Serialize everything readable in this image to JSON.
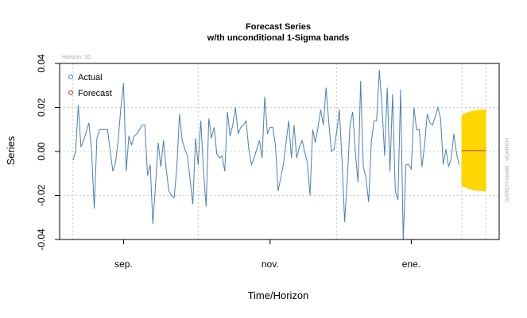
{
  "chart_data": {
    "type": "line",
    "title": "Forecast Series",
    "subtitle": "w/th unconditional 1-Sigma bands",
    "xlabel": "Time/Horizon",
    "ylabel": "Series",
    "ylim": [
      -0.04,
      0.04
    ],
    "y_ticks": [
      "-0.04",
      "-0.02",
      "0.00",
      "0.02",
      "0.04"
    ],
    "x_tick_labels": [
      "sep.",
      "nov.",
      "ene."
    ],
    "grid": true,
    "legend_position": "top-left",
    "horizon_label": "Horizon: 10",
    "side_note": "GARCH model : sGARCH",
    "series": [
      {
        "name": "Actual",
        "color": "#4a7fb5",
        "x": [
          1,
          2,
          3,
          4,
          5,
          6,
          7,
          8,
          9,
          10,
          11,
          12,
          13,
          14,
          15,
          16,
          17,
          18,
          19,
          20,
          21,
          22,
          23,
          24,
          25,
          26,
          27,
          28,
          29,
          30,
          31,
          32,
          33,
          34,
          35,
          36,
          37,
          38,
          39,
          40,
          41,
          42,
          43,
          44,
          45,
          46,
          47,
          48,
          49,
          50,
          51,
          52,
          53,
          54,
          55,
          56,
          57,
          58,
          59,
          60,
          61,
          62,
          63,
          64,
          65,
          66,
          67,
          68,
          69,
          70,
          71,
          72,
          73,
          74,
          75,
          76,
          77,
          78,
          79,
          80,
          81,
          82,
          83,
          84,
          85,
          86,
          87,
          88,
          89,
          90,
          91,
          92,
          93,
          94,
          95,
          96,
          97,
          98,
          99,
          100,
          101,
          102,
          103,
          104,
          105,
          106,
          107,
          108,
          109,
          110,
          111,
          112,
          113,
          114,
          115,
          116,
          117,
          118,
          119,
          120,
          121,
          122,
          123,
          124,
          125,
          126,
          127,
          128,
          129,
          130,
          131,
          132,
          133,
          134,
          135,
          136,
          137,
          138,
          139,
          140,
          141,
          142,
          143,
          144,
          145,
          146
        ],
        "values": [
          -0.004,
          0.0,
          0.021,
          0.002,
          0.005,
          0.009,
          0.013,
          0.0,
          -0.026,
          0.006,
          0.01,
          0.01,
          0.01,
          0.01,
          0.0,
          -0.009,
          -0.005,
          0.005,
          0.02,
          0.031,
          -0.009,
          0.007,
          0.003,
          0.007,
          0.008,
          0.01,
          0.012,
          0.012,
          -0.011,
          -0.006,
          -0.033,
          -0.015,
          0.004,
          -0.007,
          0.005,
          -0.008,
          -0.018,
          -0.02,
          -0.021,
          -0.007,
          0.017,
          0.005,
          0.001,
          -0.002,
          -0.013,
          -0.024,
          0.006,
          -0.006,
          0.014,
          -0.009,
          -0.025,
          0.015,
          0.006,
          0.011,
          -0.001,
          -0.003,
          -0.002,
          -0.009,
          0.018,
          0.007,
          0.012,
          0.02,
          0.008,
          0.011,
          0.012,
          0.014,
          0.001,
          -0.006,
          -0.003,
          0.001,
          0.005,
          -0.003,
          0.025,
          0.008,
          0.011,
          0.011,
          0.003,
          -0.018,
          -0.012,
          -0.006,
          0.004,
          0.014,
          -0.003,
          0.012,
          -0.003,
          0.002,
          0.005,
          0.0,
          -0.005,
          -0.02,
          0.01,
          0.004,
          0.011,
          0.019,
          0.012,
          0.029,
          0.014,
          0.0,
          0.001,
          0.009,
          0.019,
          -0.004,
          -0.032,
          -0.012,
          0.012,
          0.018,
          0.0,
          -0.014,
          0.032,
          -0.007,
          -0.012,
          -0.023,
          0.004,
          0.014,
          0.014,
          0.037,
          0.021,
          -0.002,
          0.029,
          -0.009,
          0.026,
          -0.018,
          -0.022,
          0.028,
          -0.04,
          -0.006,
          -0.006,
          -0.008,
          0.02,
          0.01,
          0.01,
          -0.007,
          0.003,
          0.017,
          0.013,
          0.012,
          0.016,
          0.02,
          0.015,
          -0.006,
          0.001,
          -0.007,
          -0.003,
          0.008,
          -0.001,
          -0.006
        ]
      },
      {
        "name": "Forecast",
        "color": "#cc2d1f",
        "band_color": "#ffd700",
        "x": [
          147,
          148,
          149,
          150,
          151,
          152,
          153,
          154,
          155,
          156
        ],
        "values": [
          0.0004,
          0.0004,
          0.0004,
          0.0004,
          0.0004,
          0.0004,
          0.0004,
          0.0004,
          0.0004,
          0.0004
        ],
        "upper": [
          0.0165,
          0.017,
          0.0175,
          0.018,
          0.0183,
          0.0185,
          0.0187,
          0.0188,
          0.0189,
          0.019
        ],
        "lower": [
          -0.0155,
          -0.016,
          -0.0165,
          -0.017,
          -0.0173,
          -0.0175,
          -0.0177,
          -0.0178,
          -0.0179,
          -0.018
        ]
      }
    ],
    "x_tick_positions": [
      20,
      75,
      128
    ],
    "horizon_marker": 147,
    "xlim": [
      -4,
      161
    ]
  }
}
